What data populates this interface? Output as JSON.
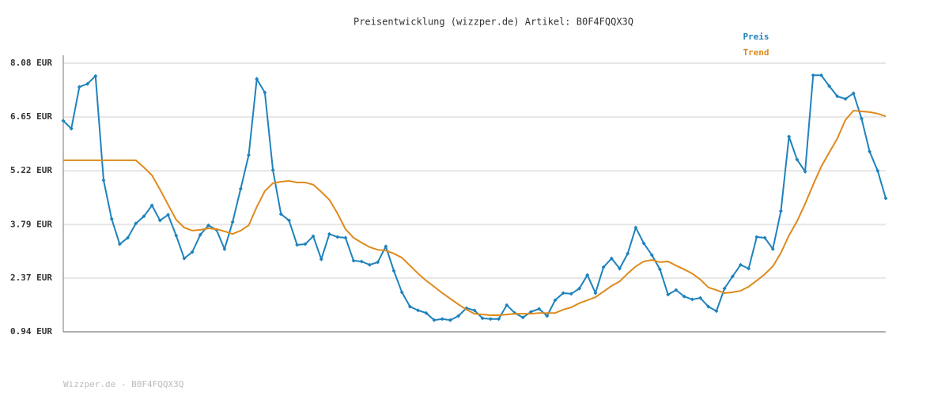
{
  "chart_data": {
    "type": "line",
    "title": "Preisentwicklung (wizzper.de) Artikel: B0F4FQQX3Q",
    "footer": "Wizzper.de - B0F4FQQX3Q",
    "legend": "top-right",
    "grid": true,
    "ylim": [
      0.94,
      8.08
    ],
    "yticks": [
      {
        "value": 0.94,
        "label": "0.94 EUR"
      },
      {
        "value": 2.37,
        "label": "2.37 EUR"
      },
      {
        "value": 3.79,
        "label": "3.79 EUR"
      },
      {
        "value": 5.22,
        "label": "5.22 EUR"
      },
      {
        "value": 6.65,
        "label": "6.65 EUR"
      },
      {
        "value": 8.08,
        "label": "8.08 EUR"
      }
    ],
    "series": [
      {
        "name": "Preis",
        "color": "#1f82bd",
        "markers": true,
        "values": [
          6.55,
          6.34,
          7.45,
          7.53,
          7.74,
          4.97,
          3.94,
          3.27,
          3.44,
          3.82,
          4.01,
          4.3,
          3.9,
          4.05,
          3.5,
          2.89,
          3.06,
          3.52,
          3.77,
          3.65,
          3.14,
          3.86,
          4.74,
          5.64,
          7.66,
          7.3,
          5.24,
          4.07,
          3.9,
          3.25,
          3.27,
          3.48,
          2.87,
          3.54,
          3.46,
          3.44,
          2.83,
          2.81,
          2.72,
          2.79,
          3.21,
          2.56,
          1.99,
          1.61,
          1.51,
          1.44,
          1.25,
          1.28,
          1.25,
          1.36,
          1.57,
          1.51,
          1.3,
          1.28,
          1.28,
          1.65,
          1.44,
          1.32,
          1.47,
          1.55,
          1.36,
          1.78,
          1.97,
          1.95,
          2.09,
          2.45,
          1.97,
          2.66,
          2.89,
          2.62,
          3.02,
          3.71,
          3.29,
          2.98,
          2.6,
          1.93,
          2.05,
          1.88,
          1.8,
          1.84,
          1.61,
          1.49,
          2.09,
          2.41,
          2.72,
          2.62,
          3.46,
          3.44,
          3.14,
          4.15,
          6.13,
          5.52,
          5.2,
          7.76,
          7.76,
          7.47,
          7.2,
          7.13,
          7.28,
          6.61,
          5.73,
          5.22,
          4.49
        ]
      },
      {
        "name": "Trend",
        "color": "#de8a1c",
        "markers": false,
        "values": [
          5.5,
          5.5,
          5.5,
          5.5,
          5.5,
          5.5,
          5.5,
          5.5,
          5.5,
          5.5,
          5.31,
          5.1,
          4.72,
          4.32,
          3.92,
          3.71,
          3.63,
          3.65,
          3.69,
          3.67,
          3.61,
          3.54,
          3.63,
          3.77,
          4.26,
          4.68,
          4.89,
          4.93,
          4.95,
          4.91,
          4.91,
          4.85,
          4.66,
          4.45,
          4.09,
          3.67,
          3.44,
          3.31,
          3.19,
          3.12,
          3.1,
          3.02,
          2.91,
          2.7,
          2.49,
          2.3,
          2.14,
          1.97,
          1.82,
          1.67,
          1.53,
          1.42,
          1.4,
          1.38,
          1.38,
          1.4,
          1.42,
          1.42,
          1.42,
          1.44,
          1.44,
          1.44,
          1.53,
          1.59,
          1.7,
          1.78,
          1.86,
          2.01,
          2.16,
          2.28,
          2.49,
          2.68,
          2.81,
          2.85,
          2.79,
          2.81,
          2.7,
          2.6,
          2.49,
          2.33,
          2.12,
          2.05,
          1.97,
          1.99,
          2.03,
          2.14,
          2.3,
          2.47,
          2.68,
          3.04,
          3.5,
          3.88,
          4.34,
          4.85,
          5.33,
          5.71,
          6.08,
          6.57,
          6.82,
          6.8,
          6.78,
          6.74,
          6.67
        ]
      }
    ]
  }
}
